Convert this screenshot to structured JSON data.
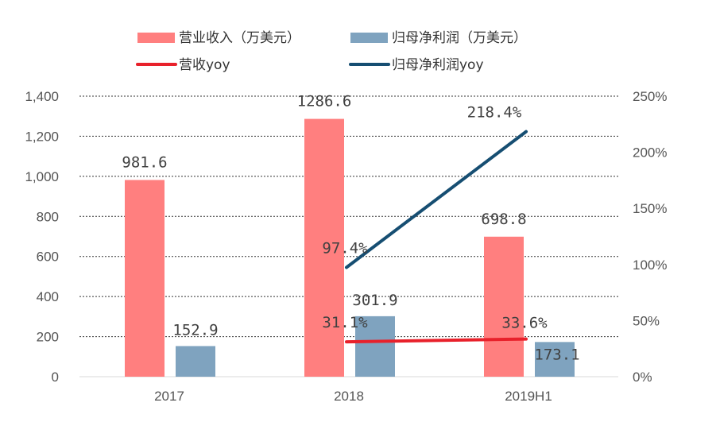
{
  "chart_data": {
    "type": "bar",
    "categories": [
      "2017",
      "2018",
      "2019H1"
    ],
    "series": [
      {
        "name": "营业收入（万美元）",
        "kind": "bar",
        "axis": "left",
        "color": "#FF7F7F",
        "values": [
          981.6,
          1286.6,
          698.8
        ],
        "labels": [
          "981.6",
          "1286.6",
          "698.8"
        ]
      },
      {
        "name": "归母净利润（万美元）",
        "kind": "bar",
        "axis": "left",
        "color": "#7FA3BF",
        "values": [
          152.9,
          301.9,
          173.1
        ],
        "labels": [
          "152.9",
          "301.9",
          "173.1"
        ]
      },
      {
        "name": "营收yoy",
        "kind": "line",
        "axis": "right",
        "color": "#E8212B",
        "values": [
          null,
          31.1,
          33.6
        ],
        "labels": [
          "",
          "31.1%",
          "33.6%"
        ]
      },
      {
        "name": "归母净利润yoy",
        "kind": "line",
        "axis": "right",
        "color": "#164E72",
        "values": [
          null,
          97.4,
          218.4
        ],
        "labels": [
          "",
          "97.4%",
          "218.4%"
        ]
      }
    ],
    "y_left": {
      "min": 0,
      "max": 1400,
      "ticks": [
        0,
        200,
        400,
        600,
        800,
        1000,
        1200,
        1400
      ],
      "tick_labels": [
        "0",
        "200",
        "400",
        "600",
        "800",
        "1,000",
        "1,200",
        "1,400"
      ]
    },
    "y_right": {
      "min": 0,
      "max": 250,
      "ticks": [
        0,
        50,
        100,
        150,
        200,
        250
      ],
      "tick_labels": [
        "0%",
        "50%",
        "100%",
        "150%",
        "200%",
        "250%"
      ]
    },
    "grid": true,
    "legend_position": "top"
  }
}
